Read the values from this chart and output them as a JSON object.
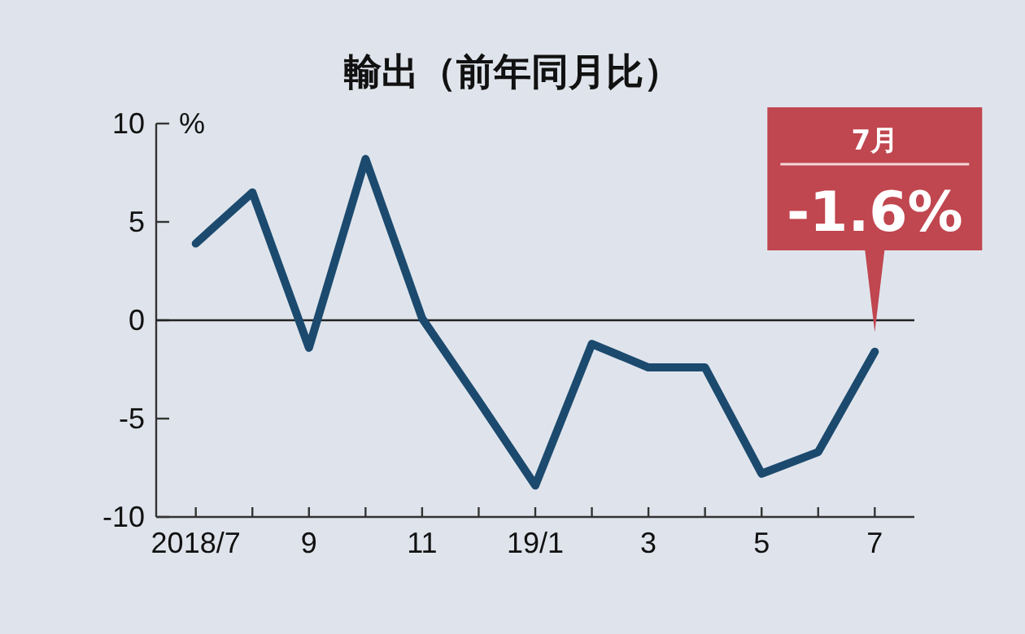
{
  "chart_data": {
    "type": "line",
    "title": "輸出（前年同月比）",
    "ylabel": "%",
    "categories": [
      "2018/7",
      null,
      "9",
      null,
      "11",
      null,
      "19/1",
      null,
      "3",
      null,
      "5",
      null,
      "7"
    ],
    "series": [
      {
        "color": "#1c4a6e",
        "values": [
          3.9,
          6.5,
          -1.4,
          8.2,
          0.1,
          -4.1,
          -8.4,
          -1.2,
          -2.4,
          -2.4,
          -7.8,
          -6.7,
          -1.6
        ]
      }
    ],
    "ylim": [
      -10,
      10
    ],
    "yticks": [
      -10,
      -5,
      0,
      5,
      10
    ],
    "ref_lines": [
      {
        "axis": "y",
        "value": 0,
        "color": "#222222"
      }
    ],
    "annotations": [
      "7月",
      "-1.6%"
    ]
  }
}
